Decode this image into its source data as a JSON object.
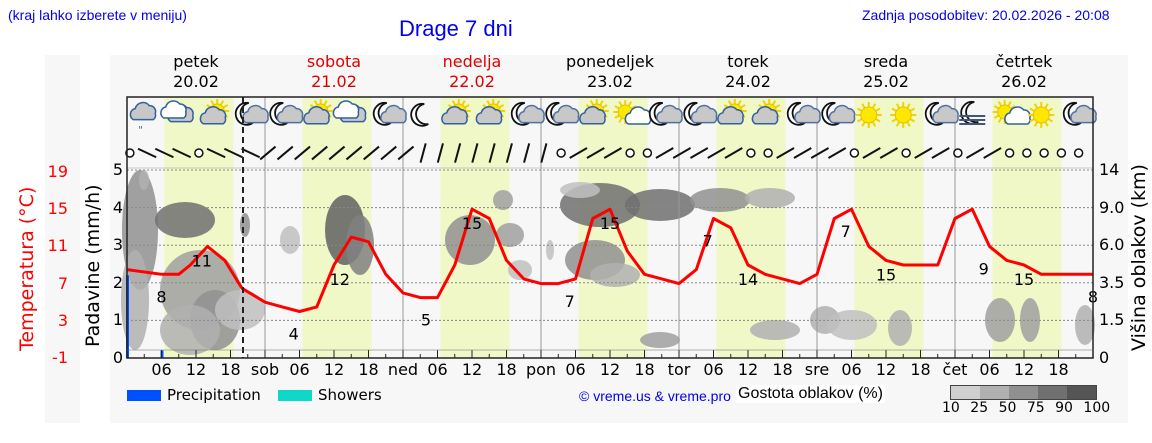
{
  "header": {
    "location_hint": "(kraj lahko izberete v meniju)",
    "title": "Drage 7 dni",
    "last_update": "Zadnja posodobitev: 20.02.2026 - 20:08"
  },
  "days": [
    {
      "name": "petek",
      "date": "20.02",
      "weekend": false,
      "short": ""
    },
    {
      "name": "sobota",
      "date": "21.02",
      "weekend": true,
      "short": "sob"
    },
    {
      "name": "nedelja",
      "date": "22.02",
      "weekend": true,
      "short": "ned"
    },
    {
      "name": "ponedeljek",
      "date": "23.02",
      "weekend": false,
      "short": "pon"
    },
    {
      "name": "torek",
      "date": "24.02",
      "weekend": false,
      "short": "tor"
    },
    {
      "name": "sreda",
      "date": "25.02",
      "weekend": false,
      "short": "sre"
    },
    {
      "name": "četrtek",
      "date": "26.02",
      "weekend": false,
      "short": "čet"
    }
  ],
  "axes": {
    "left_title": "Padavine (mm/h)",
    "left_ticks": [
      "0",
      "1",
      "2",
      "3",
      "4",
      "5"
    ],
    "temp_title": "Temperatura (°C)",
    "temp_ticks": [
      "-1",
      "3",
      "7",
      "11",
      "15",
      "19"
    ],
    "right_title": "Višina oblakov (km)",
    "right_ticks": [
      "0",
      "1.5",
      "3.5",
      "6.0",
      "9.0",
      "14"
    ],
    "hour_ticks": [
      "06",
      "12",
      "18"
    ]
  },
  "legend": {
    "precipitation": "Precipitation",
    "showers": "Showers",
    "precipitation_color": "#0050ff",
    "showers_color": "#10d8c8",
    "credit": "© vreme.us & vreme.pro",
    "density_title": "Gostota oblakov (%)",
    "density_ticks": [
      "10",
      "25",
      "50",
      "75",
      "90",
      "100"
    ],
    "density_colors": [
      "#d0d0d0",
      "#b0b0b0",
      "#909090",
      "#707070",
      "#555555"
    ]
  },
  "colors": {
    "temperature": "#ff0000",
    "daylight_band": "#f0f8c8",
    "night_band": "#f7f7f7",
    "link": "#0000ee",
    "weekend": "#e00000"
  },
  "icons": [
    "cloud-drizzle-icon",
    "cloud-icon",
    "sun-cloud-icon",
    "moon-cloud-icon",
    "moon-cloud-icon",
    "sun-cloud-icon",
    "cloud-icon",
    "moon-cloud-icon",
    "moon-icon",
    "sun-cloud-icon",
    "sun-cloud-icon",
    "moon-cloud-icon",
    "moon-cloud-icon",
    "sun-cloud-icon",
    "sun-small-cloud-icon",
    "moon-cloud-icon",
    "moon-cloud-icon",
    "sun-cloud-icon",
    "sun-cloud-icon",
    "moon-cloud-icon",
    "moon-cloud-icon",
    "sun-icon",
    "sun-icon",
    "moon-cloud-icon",
    "moon-fog-icon",
    "sun-small-cloud-icon",
    "sun-icon",
    "moon-cloud-icon"
  ],
  "chart_data": {
    "type": "line",
    "title": "Drage 7 dni",
    "xlabel": "",
    "ylabel": "Temperatura (°C)",
    "ylim": [
      -1,
      19
    ],
    "series": [
      {
        "name": "Temperature (°C)",
        "x_hours_from_fri_00": [
          0,
          6,
          9,
          11,
          14,
          17,
          20,
          24,
          27,
          30,
          33,
          36,
          39,
          42,
          45,
          48,
          51,
          54,
          57,
          60,
          63,
          66,
          69,
          72,
          75,
          78,
          81,
          84,
          87,
          90,
          93,
          96,
          99,
          102,
          105,
          108,
          111,
          114,
          117,
          120,
          123,
          126,
          129,
          132,
          135,
          138,
          141,
          144,
          147,
          150,
          153,
          156,
          159,
          162,
          165,
          168
        ],
        "values": [
          8.5,
          8,
          8,
          9,
          11,
          9.5,
          6.5,
          5,
          4.5,
          4,
          4.5,
          9,
          12,
          11.5,
          8,
          6,
          5.5,
          5.5,
          9,
          15,
          14,
          9.5,
          7.5,
          7,
          7,
          7.5,
          14,
          15,
          10.5,
          8,
          7.5,
          7,
          8.5,
          14,
          13,
          9,
          8,
          7.5,
          7,
          8,
          14,
          15,
          11,
          9.5,
          9,
          9,
          9,
          14,
          15,
          11,
          9.5,
          9,
          8,
          8,
          8,
          8
        ]
      }
    ],
    "temp_labels": [
      {
        "label": "8",
        "hour": 6
      },
      {
        "label": "11",
        "hour": 13
      },
      {
        "label": "4",
        "hour": 29
      },
      {
        "label": "12",
        "hour": 37
      },
      {
        "label": "5",
        "hour": 52
      },
      {
        "label": "15",
        "hour": 60
      },
      {
        "label": "7",
        "hour": 77
      },
      {
        "label": "15",
        "hour": 84
      },
      {
        "label": "7",
        "hour": 101
      },
      {
        "label": "14",
        "hour": 108
      },
      {
        "label": "7",
        "hour": 125
      },
      {
        "label": "15",
        "hour": 132
      },
      {
        "label": "9",
        "hour": 149
      },
      {
        "label": "15",
        "hour": 156
      },
      {
        "label": "8",
        "hour": 168
      }
    ],
    "precipitation_mm_h": [
      {
        "hour": 0,
        "value": 2.2
      },
      {
        "hour": 6,
        "value": 0.2
      }
    ],
    "left_axis": {
      "label": "Padavine (mm/h)",
      "range": [
        0,
        5
      ]
    },
    "right_axis": {
      "label": "Višina oblakov (km)",
      "ticks": [
        0,
        1.5,
        3.5,
        6.0,
        9.0,
        14
      ]
    },
    "grid": true,
    "current_time_marker_hour": 20
  }
}
